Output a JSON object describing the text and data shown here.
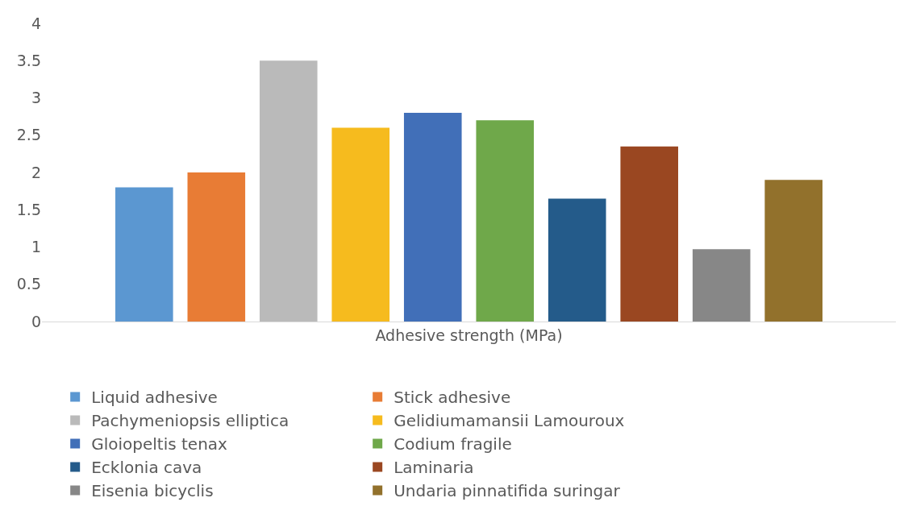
{
  "chart_data": {
    "type": "bar",
    "categories": [
      "Adhesive strength (MPa)"
    ],
    "ylim": [
      0,
      4
    ],
    "yticks": [
      0,
      0.5,
      1,
      1.5,
      2,
      2.5,
      3,
      3.5,
      4
    ],
    "grid": false,
    "legend": "bottom",
    "series": [
      {
        "name": "Liquid adhesive",
        "color": "#5b97d1",
        "values": [
          1.8
        ]
      },
      {
        "name": "Stick adhesive",
        "color": "#e87c35",
        "values": [
          2.0
        ]
      },
      {
        "name": "Pachymeniopsis elliptica",
        "color": "#bababa",
        "values": [
          3.5
        ]
      },
      {
        "name": "Gelidiumamansii Lamouroux",
        "color": "#f6bb1e",
        "values": [
          2.6
        ]
      },
      {
        "name": "Gloiopeltis tenax",
        "color": "#416fb8",
        "values": [
          2.8
        ]
      },
      {
        "name": "Codium fragile",
        "color": "#6fa84a",
        "values": [
          2.7
        ]
      },
      {
        "name": "Ecklonia cava",
        "color": "#245b8a",
        "values": [
          1.65
        ]
      },
      {
        "name": "Laminaria",
        "color": "#9a4721",
        "values": [
          2.35
        ]
      },
      {
        "name": "Eisenia bicyclis",
        "color": "#878787",
        "values": [
          0.97
        ]
      },
      {
        "name": "Undaria pinnatifida suringar",
        "color": "#92712c",
        "values": [
          1.9
        ]
      }
    ]
  }
}
